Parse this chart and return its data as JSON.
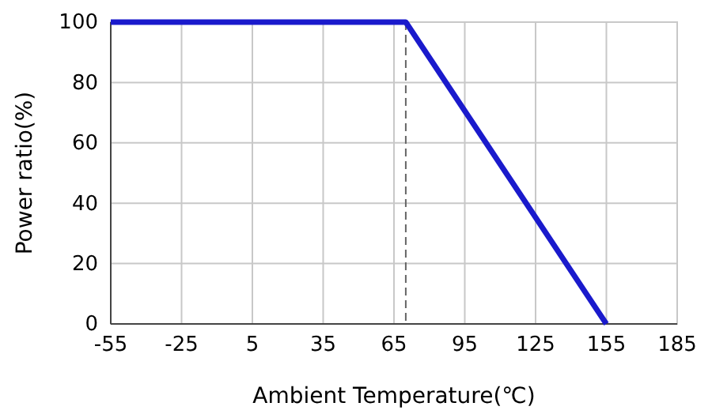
{
  "chart_data": {
    "type": "line",
    "xlabel": "Ambient Temperature(℃)",
    "ylabel": "Power ratio(%)",
    "x": [
      -55,
      70,
      155
    ],
    "series": [
      {
        "color": "#1a1acc",
        "values": [
          100,
          100,
          0
        ]
      }
    ],
    "xlim": [
      -55,
      185
    ],
    "xticks": [
      -55,
      -25,
      5,
      35,
      65,
      95,
      125,
      155,
      185
    ],
    "ylim": [
      0,
      100
    ],
    "yticks": [
      0,
      20,
      40,
      60,
      80,
      100
    ],
    "grid": true,
    "line_style": "solid",
    "marker": "none",
    "ref_lines": [
      {
        "axis": "x",
        "value": 70,
        "color": "#666666",
        "line_style": "dashed"
      }
    ]
  }
}
